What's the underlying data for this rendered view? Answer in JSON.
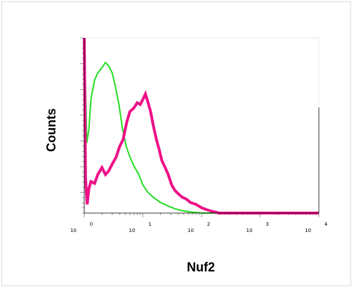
{
  "chart_data": {
    "type": "line",
    "title": "",
    "xlabel": "Nuf2",
    "ylabel": "Counts",
    "x_scale": "log",
    "xlim": [
      1,
      10000
    ],
    "ylim": [
      0,
      100
    ],
    "x_tick_labels": [
      {
        "base": "10",
        "exp": "0"
      },
      {
        "base": "10",
        "exp": "1"
      },
      {
        "base": "10",
        "exp": "2"
      },
      {
        "base": "10",
        "exp": "3"
      },
      {
        "base": "10",
        "exp": "4"
      }
    ],
    "series": [
      {
        "color": "#22dd22",
        "x": [
          1.0,
          1.05,
          1.1,
          1.2,
          1.3,
          1.5,
          1.7,
          2.0,
          2.3,
          2.6,
          3.0,
          3.4,
          3.9,
          4.5,
          5.2,
          6.0,
          7.0,
          8.5,
          10,
          12,
          15,
          20,
          27,
          35,
          45,
          55,
          65,
          80,
          100,
          10000
        ],
        "y": [
          100,
          72,
          40,
          48,
          65,
          76,
          80,
          83,
          86,
          84,
          80,
          72,
          62,
          48,
          38,
          32,
          27,
          22,
          16,
          12,
          9,
          6,
          4,
          2.5,
          1.5,
          1,
          0.6,
          0.3,
          0,
          0
        ]
      },
      {
        "color": "#ee1188",
        "x": [
          1.0,
          1.05,
          1.12,
          1.2,
          1.3,
          1.5,
          1.7,
          2.0,
          2.3,
          2.6,
          3.0,
          3.5,
          4.0,
          4.6,
          5.3,
          6.0,
          7.0,
          8.0,
          9.0,
          10,
          11,
          12,
          13.5,
          15,
          17,
          19,
          21,
          24,
          27,
          31,
          35,
          40,
          47,
          55,
          65,
          80,
          100,
          120,
          150,
          200,
          10000
        ],
        "y": [
          100,
          20,
          5,
          14,
          18,
          17,
          22,
          26,
          22,
          24,
          28,
          32,
          38,
          42,
          52,
          58,
          60,
          63,
          62,
          65,
          68,
          64,
          58,
          50,
          42,
          36,
          30,
          26,
          22,
          16,
          13,
          11,
          9,
          8,
          6,
          5,
          3,
          2,
          1,
          0,
          0
        ]
      }
    ]
  }
}
